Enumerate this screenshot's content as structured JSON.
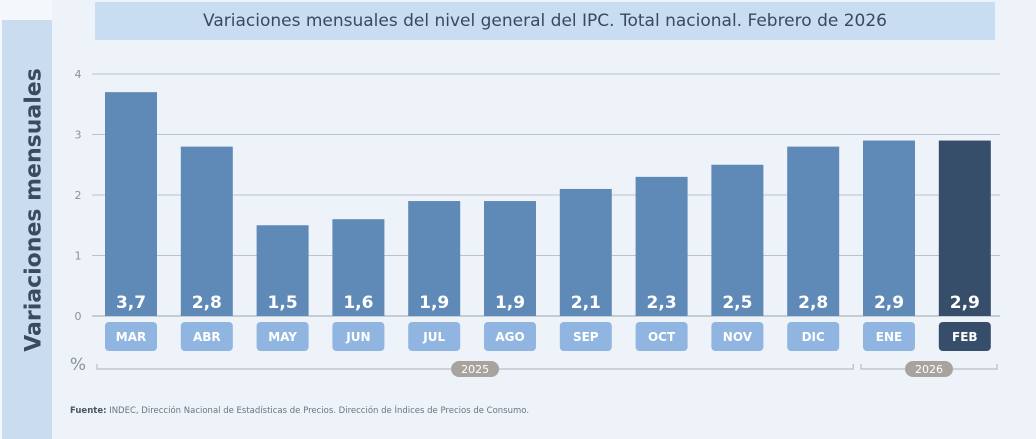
{
  "chart_data": {
    "type": "bar",
    "title": "Variaciones mensuales del nivel general del IPC. Total nacional. Febrero de 2026",
    "ylabel": "Variaciones mensuales",
    "yunit": "%",
    "ylim": [
      0,
      4
    ],
    "yticks": [
      0,
      1,
      2,
      3,
      4
    ],
    "grid": true,
    "categories": [
      "MAR",
      "ABR",
      "MAY",
      "JUN",
      "JUL",
      "AGO",
      "SEP",
      "OCT",
      "NOV",
      "DIC",
      "ENE",
      "FEB"
    ],
    "values": [
      3.7,
      2.8,
      1.5,
      1.6,
      1.9,
      1.9,
      2.1,
      2.3,
      2.5,
      2.8,
      2.9,
      2.9
    ],
    "data_labels": [
      "3,7",
      "2,8",
      "1,5",
      "1,6",
      "1,9",
      "1,9",
      "2,1",
      "2,3",
      "2,5",
      "2,8",
      "2,9",
      "2,9"
    ],
    "year_groups": [
      {
        "label": "2025",
        "from": "MAR",
        "to": "DIC"
      },
      {
        "label": "2026",
        "from": "ENE",
        "to": "FEB"
      }
    ],
    "highlighted": "FEB",
    "colors": {
      "bar": "#5f8ab7",
      "highlight": "#374e6b",
      "pill": "#8fb5e0",
      "grid": "#b9c3ce",
      "year_badge": "#a8a39d"
    }
  },
  "footnote": {
    "label": "Fuente:",
    "text": " INDEC, Dirección Nacional de Estadísticas de Precios. Dirección de Índices de Precios de Consumo."
  }
}
